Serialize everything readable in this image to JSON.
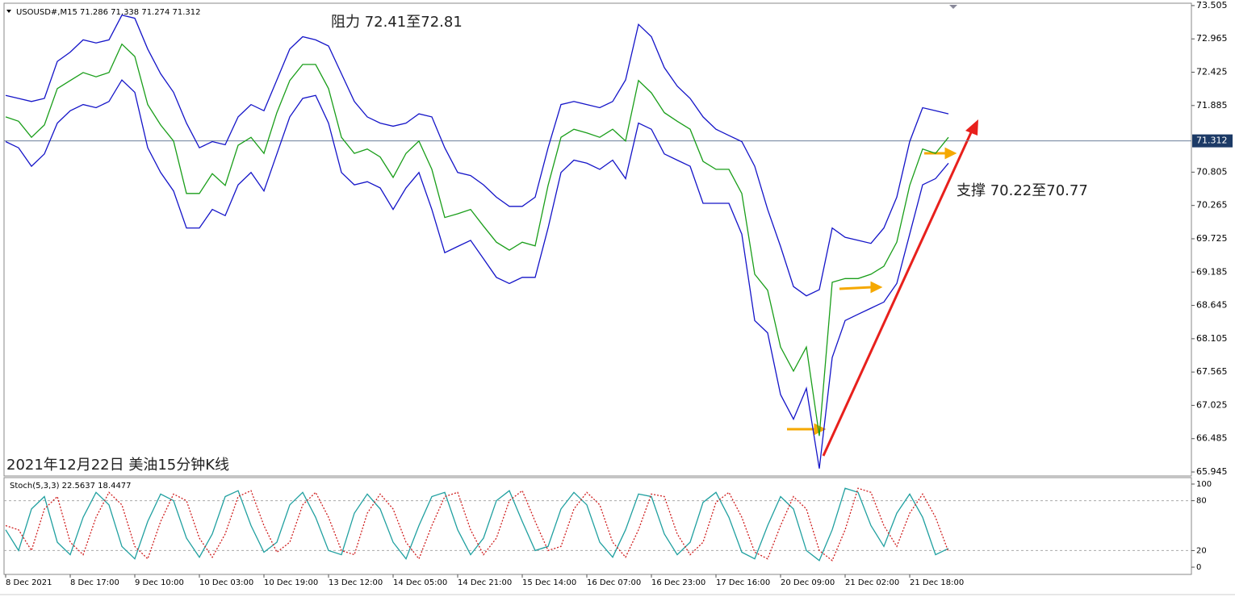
{
  "chart_data": [
    {
      "type": "line",
      "title": "USOUSD#,M15  71.286 71.338 71.274 71.312",
      "annotations": [
        "阻力 72.41至72.81",
        "支撑 70.22至70.77",
        "2021年12月22日 美油15分钟K线"
      ],
      "current_price": 71.312,
      "ylim": [
        65.88,
        73.53
      ],
      "yticks": [
        73.505,
        72.965,
        72.425,
        71.885,
        70.805,
        70.265,
        69.725,
        69.185,
        68.645,
        68.105,
        67.565,
        67.025,
        66.485,
        65.945
      ],
      "series": [
        {
          "color": "#1a9e1a",
          "values": [
            71.7,
            71.63,
            71.37,
            71.57,
            72.16,
            72.29,
            72.42,
            72.35,
            72.42,
            72.88,
            72.68,
            71.9,
            71.57,
            71.31,
            70.46,
            70.46,
            70.78,
            70.59,
            71.24,
            71.37,
            71.11,
            71.77,
            72.29,
            72.55,
            72.55,
            72.16,
            71.37,
            71.11,
            71.18,
            71.05,
            70.72,
            71.11,
            71.31,
            70.85,
            70.07,
            70.13,
            70.2,
            69.93,
            69.67,
            69.54,
            69.67,
            69.61,
            70.59,
            71.37,
            71.5,
            71.44,
            71.37,
            71.5,
            71.31,
            72.29,
            72.09,
            71.77,
            71.63,
            71.5,
            70.98,
            70.85,
            70.85,
            70.46,
            69.15,
            68.89,
            67.97,
            67.58,
            67.97,
            66.53,
            69.02,
            69.08,
            69.08,
            69.15,
            69.28,
            69.67,
            70.59,
            71.18,
            71.11,
            71.37
          ]
        },
        {
          "color": "#1414c8",
          "values": [
            72.05,
            72.0,
            71.95,
            72.0,
            72.6,
            72.75,
            72.95,
            72.9,
            72.95,
            73.35,
            73.3,
            72.8,
            72.4,
            72.1,
            71.6,
            71.2,
            71.3,
            71.25,
            71.7,
            71.9,
            71.8,
            72.3,
            72.8,
            73.0,
            72.95,
            72.85,
            72.4,
            71.95,
            71.7,
            71.6,
            71.55,
            71.6,
            71.75,
            71.7,
            71.2,
            70.8,
            70.75,
            70.6,
            70.4,
            70.25,
            70.25,
            70.4,
            71.2,
            71.9,
            71.95,
            71.9,
            71.85,
            71.95,
            72.3,
            73.2,
            73.0,
            72.5,
            72.2,
            72.0,
            71.7,
            71.5,
            71.4,
            71.3,
            70.9,
            70.2,
            69.6,
            68.95,
            68.8,
            68.9,
            69.9,
            69.75,
            69.7,
            69.65,
            69.9,
            70.4,
            71.3,
            71.85,
            71.8,
            71.75
          ]
        },
        {
          "color": "#1414c8",
          "values": [
            71.3,
            71.2,
            70.9,
            71.1,
            71.6,
            71.8,
            71.9,
            71.85,
            71.95,
            72.3,
            72.1,
            71.2,
            70.8,
            70.5,
            69.9,
            69.9,
            70.2,
            70.1,
            70.6,
            70.8,
            70.5,
            71.1,
            71.7,
            72.0,
            72.05,
            71.6,
            70.8,
            70.6,
            70.65,
            70.55,
            70.2,
            70.55,
            70.8,
            70.2,
            69.5,
            69.6,
            69.7,
            69.4,
            69.1,
            69.0,
            69.1,
            69.1,
            69.9,
            70.8,
            71.0,
            70.95,
            70.85,
            71.0,
            70.7,
            71.6,
            71.5,
            71.1,
            71.0,
            70.9,
            70.3,
            70.3,
            70.3,
            69.8,
            68.4,
            68.2,
            67.2,
            66.8,
            67.3,
            66.0,
            67.8,
            68.4,
            68.5,
            68.6,
            68.7,
            69.0,
            69.8,
            70.6,
            70.7,
            70.95
          ]
        }
      ]
    },
    {
      "type": "line",
      "title": "Stoch(5,3,3) 22.5637 18.4477",
      "categories": [
        "8 Dec 2021",
        null,
        null,
        null,
        null,
        "8 Dec 17:00",
        null,
        null,
        null,
        null,
        "9 Dec 10:00",
        null,
        null,
        null,
        null,
        "10 Dec 03:00",
        null,
        null,
        null,
        null,
        "10 Dec 19:00",
        null,
        null,
        null,
        null,
        "13 Dec 12:00",
        null,
        null,
        null,
        null,
        "14 Dec 05:00",
        null,
        null,
        null,
        null,
        "14 Dec 21:00",
        null,
        null,
        null,
        null,
        "15 Dec 14:00",
        null,
        null,
        null,
        null,
        "16 Dec 07:00",
        null,
        null,
        null,
        null,
        "16 Dec 23:00",
        null,
        null,
        null,
        null,
        "17 Dec 16:00",
        null,
        null,
        null,
        null,
        "20 Dec 09:00",
        null,
        null,
        null,
        null,
        "21 Dec 02:00",
        null,
        null,
        null,
        null,
        "21 Dec 18:00",
        null,
        null,
        null
      ],
      "ylim": [
        -8.7,
        106.8
      ],
      "yticks": [
        100,
        80,
        20,
        0
      ],
      "levels": [
        80,
        20
      ],
      "series": [
        {
          "color": "#20a0a0",
          "values": [
            45,
            20,
            70,
            85,
            30,
            15,
            60,
            90,
            75,
            25,
            10,
            55,
            88,
            80,
            35,
            12,
            40,
            85,
            92,
            50,
            18,
            30,
            75,
            90,
            60,
            20,
            15,
            65,
            88,
            70,
            30,
            10,
            50,
            85,
            90,
            45,
            15,
            35,
            80,
            92,
            55,
            20,
            25,
            70,
            90,
            75,
            30,
            12,
            45,
            88,
            85,
            40,
            15,
            30,
            78,
            90,
            60,
            18,
            10,
            50,
            85,
            70,
            20,
            8,
            45,
            95,
            90,
            50,
            25,
            65,
            88,
            60,
            15,
            22.5637
          ]
        },
        {
          "color": "#d02020",
          "dashed": true,
          "values": [
            50,
            45,
            20,
            70,
            85,
            30,
            15,
            60,
            90,
            75,
            25,
            10,
            55,
            88,
            80,
            35,
            12,
            40,
            85,
            92,
            50,
            18,
            30,
            75,
            90,
            60,
            20,
            15,
            65,
            88,
            70,
            30,
            10,
            50,
            85,
            90,
            45,
            15,
            35,
            80,
            92,
            55,
            20,
            25,
            70,
            90,
            75,
            30,
            12,
            45,
            88,
            85,
            40,
            15,
            30,
            78,
            90,
            60,
            18,
            10,
            50,
            85,
            70,
            20,
            8,
            45,
            95,
            90,
            50,
            25,
            65,
            88,
            60,
            18.4477
          ]
        }
      ]
    }
  ]
}
